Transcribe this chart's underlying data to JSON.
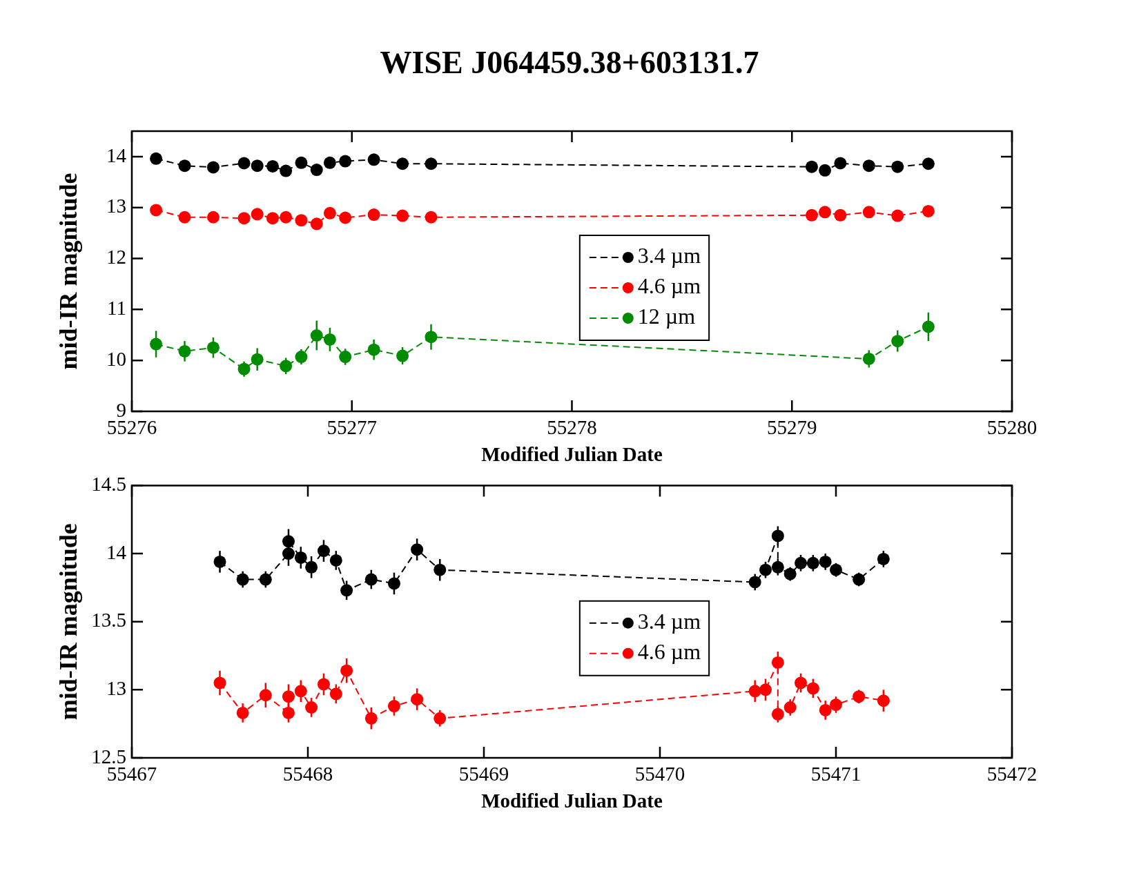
{
  "chart_data": [
    {
      "type": "line",
      "title": "WISE J064459.38+603131.7",
      "xlabel": "Modified Julian Date",
      "ylabel": "mid-IR magnitude",
      "xlim": [
        55276,
        55280
      ],
      "xticks": [
        55276,
        55277,
        55278,
        55279,
        55280
      ],
      "ylim": [
        9,
        14.5
      ],
      "yticks": [
        9,
        10,
        11,
        12,
        13,
        14
      ],
      "grid": false,
      "legend": "center",
      "marker": "circle",
      "line_style": "dashed",
      "series": [
        {
          "name": "3.4 µm",
          "color": "#000000",
          "x": [
            55276.11,
            55276.24,
            55276.37,
            55276.51,
            55276.57,
            55276.64,
            55276.7,
            55276.77,
            55276.84,
            55276.9,
            55276.97,
            55277.1,
            55277.23,
            55277.36,
            55279.09,
            55279.15,
            55279.22,
            55279.35,
            55279.48,
            55279.62
          ],
          "values": [
            13.96,
            13.82,
            13.79,
            13.87,
            13.82,
            13.81,
            13.72,
            13.88,
            13.74,
            13.88,
            13.91,
            13.94,
            13.86,
            13.86,
            13.8,
            13.73,
            13.87,
            13.82,
            13.8,
            13.86
          ]
        },
        {
          "name": "4.6 µm",
          "color": "#ff0000",
          "x": [
            55276.11,
            55276.24,
            55276.37,
            55276.51,
            55276.57,
            55276.64,
            55276.7,
            55276.77,
            55276.84,
            55276.9,
            55276.97,
            55277.1,
            55277.23,
            55277.36,
            55279.09,
            55279.15,
            55279.22,
            55279.35,
            55279.48,
            55279.62
          ],
          "values": [
            12.95,
            12.81,
            12.81,
            12.79,
            12.87,
            12.79,
            12.81,
            12.75,
            12.68,
            12.89,
            12.8,
            12.86,
            12.84,
            12.81,
            12.85,
            12.91,
            12.85,
            12.91,
            12.84,
            12.93
          ]
        },
        {
          "name": "12 µm",
          "color": "#008c00",
          "x": [
            55276.11,
            55276.24,
            55276.37,
            55276.51,
            55276.57,
            55276.7,
            55276.77,
            55276.84,
            55276.9,
            55276.97,
            55277.1,
            55277.23,
            55277.36,
            55279.35,
            55279.48,
            55279.62
          ],
          "values": [
            10.32,
            10.18,
            10.25,
            9.83,
            10.02,
            9.89,
            10.07,
            10.49,
            10.41,
            10.07,
            10.21,
            10.09,
            10.46,
            10.03,
            10.38,
            10.66
          ],
          "errors": [
            0.26,
            0.2,
            0.2,
            0.15,
            0.22,
            0.16,
            0.15,
            0.29,
            0.23,
            0.16,
            0.2,
            0.17,
            0.25,
            0.17,
            0.21,
            0.28
          ]
        }
      ]
    },
    {
      "type": "line",
      "xlabel": "Modified Julian Date",
      "ylabel": "mid-IR magnitude",
      "xlim": [
        55467,
        55472
      ],
      "xticks": [
        55467,
        55468,
        55469,
        55470,
        55471,
        55472
      ],
      "ylim": [
        12.5,
        14.5
      ],
      "yticks": [
        12.5,
        13,
        13.5,
        14,
        14.5
      ],
      "grid": false,
      "legend": "center",
      "marker": "circle",
      "line_style": "dashed",
      "series": [
        {
          "name": "3.4 µm",
          "color": "#000000",
          "x": [
            55467.5,
            55467.63,
            55467.76,
            55467.89,
            55467.89,
            55467.96,
            55468.02,
            55468.09,
            55468.16,
            55468.22,
            55468.36,
            55468.49,
            55468.62,
            55468.75,
            55470.54,
            55470.6,
            55470.67,
            55470.67,
            55470.74,
            55470.8,
            55470.87,
            55470.94,
            55471.0,
            55471.13,
            55471.27
          ],
          "values": [
            13.94,
            13.81,
            13.81,
            14.0,
            14.09,
            13.97,
            13.9,
            14.02,
            13.95,
            13.73,
            13.81,
            13.78,
            14.03,
            13.88,
            13.79,
            13.88,
            14.13,
            13.9,
            13.85,
            13.93,
            13.93,
            13.94,
            13.88,
            13.81,
            13.96
          ],
          "errors": [
            0.08,
            0.06,
            0.06,
            0.09,
            0.09,
            0.08,
            0.08,
            0.08,
            0.07,
            0.07,
            0.07,
            0.08,
            0.08,
            0.08,
            0.06,
            0.06,
            0.07,
            0.06,
            0.05,
            0.06,
            0.06,
            0.06,
            0.05,
            0.05,
            0.06
          ]
        },
        {
          "name": "4.6 µm",
          "color": "#ff0000",
          "x": [
            55467.5,
            55467.63,
            55467.76,
            55467.89,
            55467.89,
            55467.96,
            55468.02,
            55468.09,
            55468.16,
            55468.22,
            55468.36,
            55468.49,
            55468.62,
            55468.75,
            55470.54,
            55470.6,
            55470.67,
            55470.67,
            55470.74,
            55470.8,
            55470.87,
            55470.94,
            55471.0,
            55471.13,
            55471.27
          ],
          "values": [
            13.05,
            12.83,
            12.96,
            12.83,
            12.95,
            12.99,
            12.87,
            13.04,
            12.97,
            13.14,
            12.79,
            12.88,
            12.93,
            12.79,
            12.99,
            13.0,
            13.2,
            12.82,
            12.87,
            13.05,
            13.01,
            12.85,
            12.89,
            12.95,
            12.92
          ],
          "errors": [
            0.09,
            0.07,
            0.09,
            0.07,
            0.09,
            0.08,
            0.07,
            0.08,
            0.07,
            0.09,
            0.08,
            0.07,
            0.08,
            0.06,
            0.08,
            0.08,
            0.08,
            0.06,
            0.06,
            0.07,
            0.07,
            0.07,
            0.06,
            0.05,
            0.08
          ]
        }
      ]
    }
  ]
}
